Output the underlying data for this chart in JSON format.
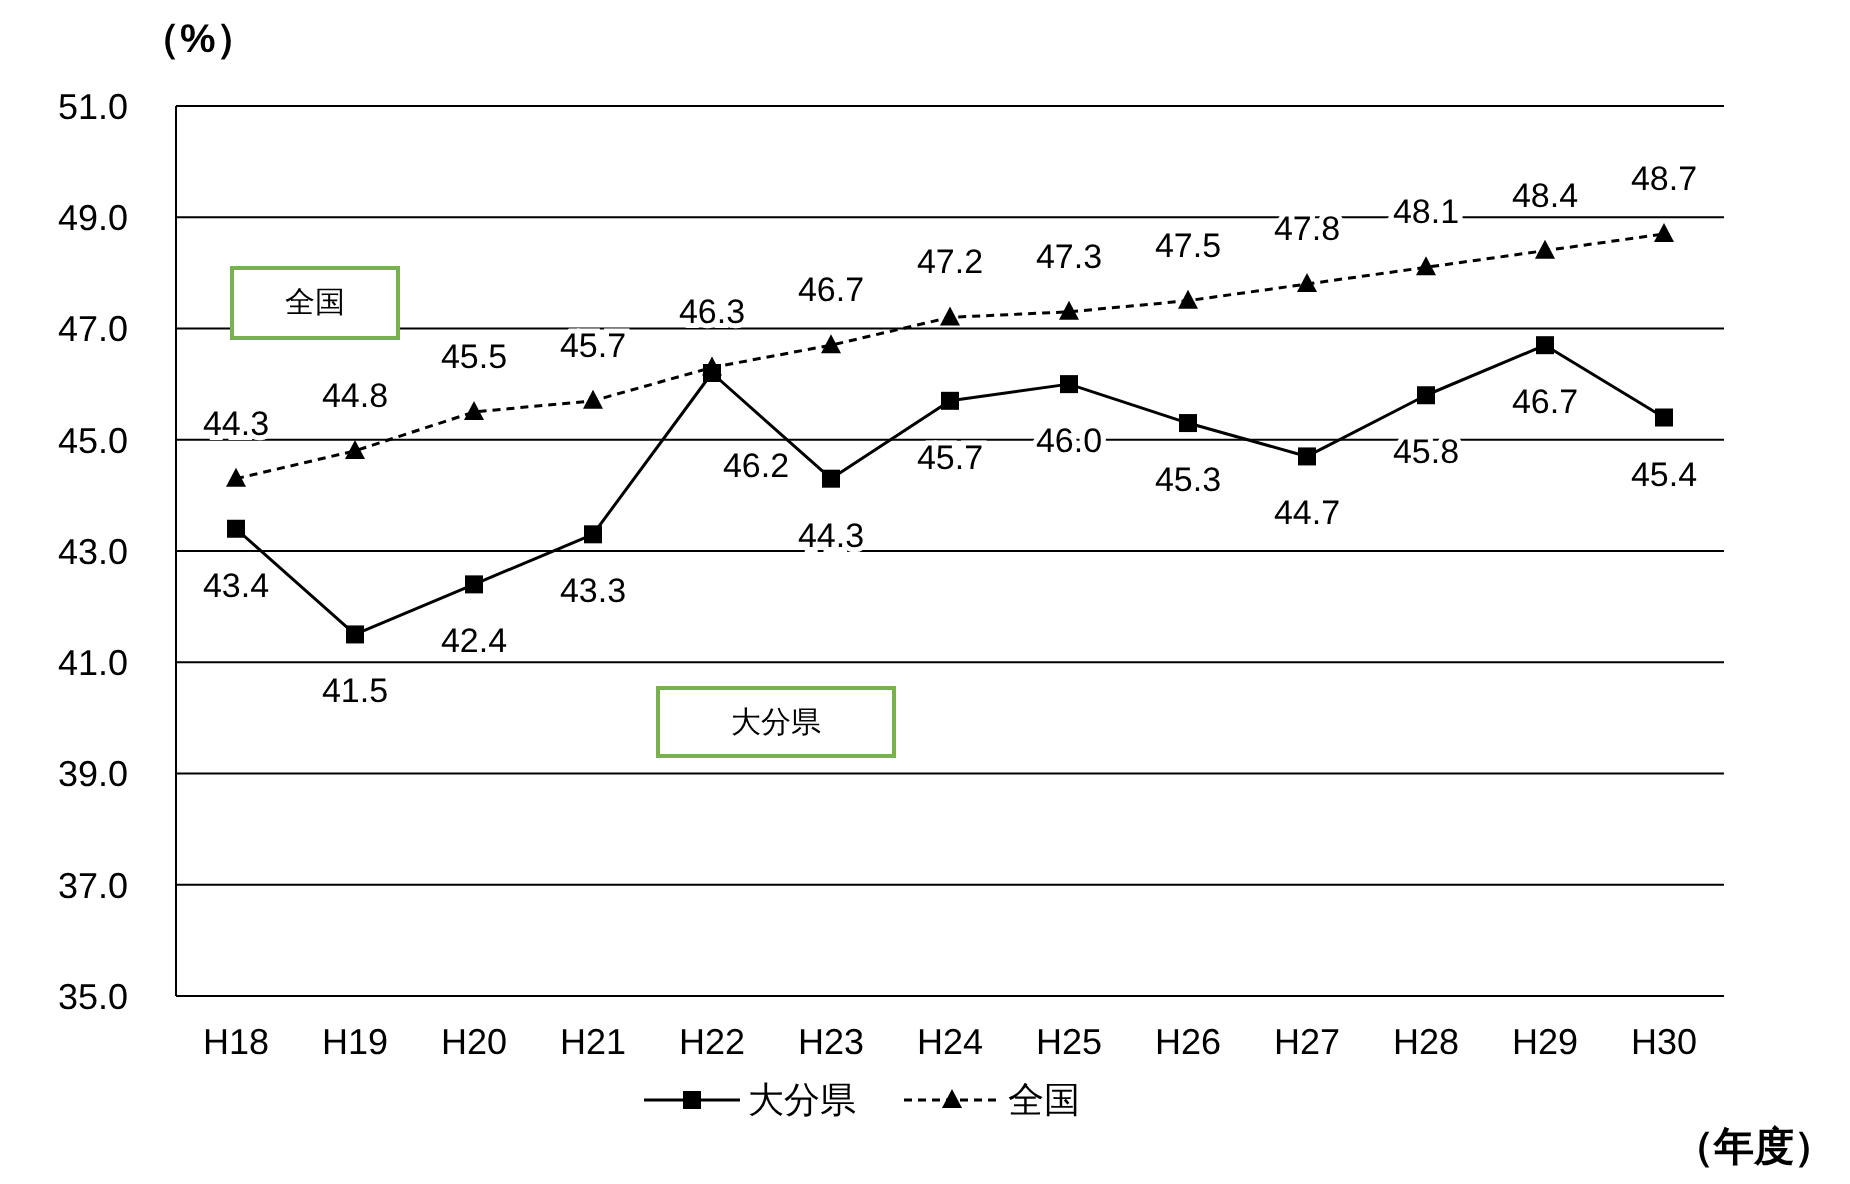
{
  "chart_data": {
    "type": "line",
    "ylabel": "（%）",
    "xlabel": "（年度）",
    "categories": [
      "H18",
      "H19",
      "H20",
      "H21",
      "H22",
      "H23",
      "H24",
      "H25",
      "H26",
      "H27",
      "H28",
      "H29",
      "H30"
    ],
    "series": [
      {
        "name": "大分県",
        "color": "#000000",
        "marker": "square",
        "line_style": "solid",
        "values": [
          43.4,
          41.5,
          42.4,
          43.3,
          46.2,
          44.3,
          45.7,
          46.0,
          45.3,
          44.7,
          45.8,
          46.7,
          45.4
        ],
        "value_labels": [
          "43.4",
          "41.5",
          "42.4",
          "43.3",
          "46.2",
          "44.3",
          "45.7",
          "46.0",
          "45.3",
          "44.7",
          "45.8",
          "46.7",
          "45.4"
        ]
      },
      {
        "name": "全国",
        "color": "#000000",
        "marker": "triangle",
        "line_style": "dashed",
        "values": [
          44.3,
          44.8,
          45.5,
          45.7,
          46.3,
          46.7,
          47.2,
          47.3,
          47.5,
          47.8,
          48.1,
          48.4,
          48.7
        ],
        "value_labels": [
          "44.3",
          "44.8",
          "45.5",
          "45.7",
          "46.3",
          "46.7",
          "47.2",
          "47.3",
          "47.5",
          "47.8",
          "48.1",
          "48.4",
          "48.7"
        ]
      }
    ],
    "ylim": [
      35,
      51
    ],
    "yticks": [
      {
        "value": 35,
        "label": "35.0"
      },
      {
        "value": 37,
        "label": "37.0"
      },
      {
        "value": 39,
        "label": "39.0"
      },
      {
        "value": 41,
        "label": "41.0"
      },
      {
        "value": 43,
        "label": "43.0"
      },
      {
        "value": 45,
        "label": "45.0"
      },
      {
        "value": 47,
        "label": "47.0"
      },
      {
        "value": 49,
        "label": "49.0"
      },
      {
        "value": 51,
        "label": "51.0"
      }
    ],
    "grid": "y",
    "legend": "bottom",
    "annotations": [
      "全国",
      "大分県"
    ]
  }
}
